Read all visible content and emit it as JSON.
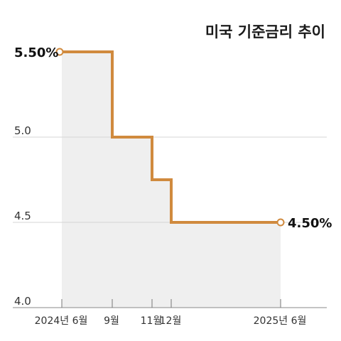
{
  "chart_data": {
    "type": "line",
    "step": true,
    "title": "미국 기준금리 추이",
    "x": [
      "2024-06",
      "2024-09",
      "2024-11",
      "2024-12",
      "2025-06"
    ],
    "values": [
      5.5,
      5.0,
      4.75,
      4.5,
      4.5
    ],
    "x_tick_labels": [
      "2024년 6월",
      "9월",
      "11월",
      "12월",
      "2025년 6월"
    ],
    "y_ticks": [
      4.0,
      4.5,
      5.0
    ],
    "y_tick_labels": [
      "4.0",
      "4.5",
      "5.0"
    ],
    "ylim": [
      4.0,
      5.5
    ],
    "start_label": "5.50%",
    "end_label": "4.50%",
    "grid": true,
    "colors": {
      "line": "#d08a3e",
      "fill": "#efefef",
      "grid": "#d6d6d6",
      "axis": "#888888",
      "marker_fill": "#ffffff"
    }
  }
}
